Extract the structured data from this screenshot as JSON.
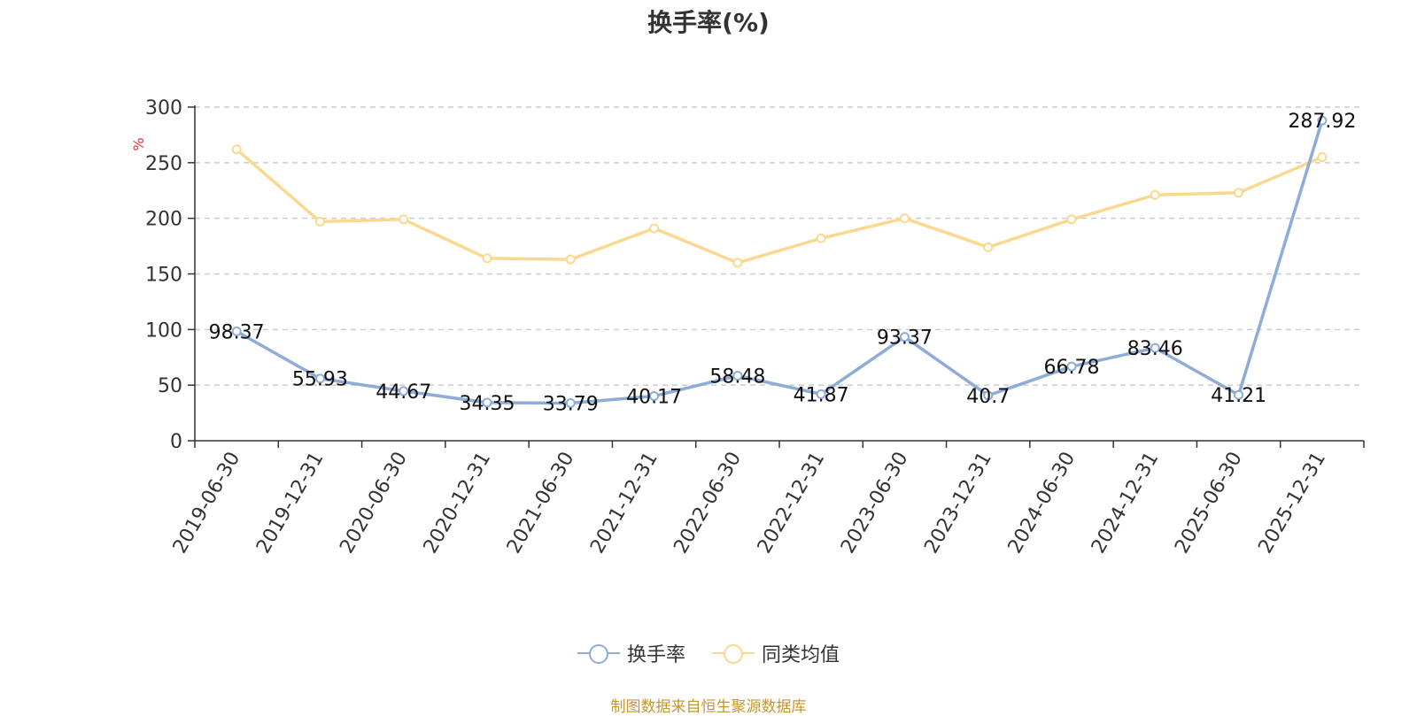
{
  "chart_data": {
    "type": "line",
    "title": "换手率(%)",
    "ylabel": "%",
    "xlabel": "",
    "ylim": [
      0,
      300
    ],
    "yticks": [
      0,
      50,
      100,
      150,
      200,
      250,
      300
    ],
    "grid": true,
    "legend_position": "bottom",
    "categories": [
      "2019-06-30",
      "2019-12-31",
      "2020-06-30",
      "2020-12-31",
      "2021-06-30",
      "2021-12-31",
      "2022-06-30",
      "2022-12-31",
      "2023-06-30",
      "2023-12-31",
      "2024-06-30",
      "2024-12-31",
      "2025-06-30",
      "2025-12-31"
    ],
    "series": [
      {
        "name": "换手率",
        "color": "#8eacd8",
        "values": [
          98.37,
          55.93,
          44.67,
          34.35,
          33.79,
          40.17,
          58.48,
          41.87,
          93.37,
          40.7,
          66.78,
          83.46,
          41.21,
          287.92
        ],
        "labels": [
          "98.37",
          "55.93",
          "44.67",
          "34.35",
          "33.79",
          "40.17",
          "58.48",
          "41.87",
          "93.37",
          "40.7",
          "66.78",
          "83.46",
          "41.21",
          "287.92"
        ],
        "show_labels": true
      },
      {
        "name": "同类均值",
        "color": "#fbd88f",
        "values": [
          262,
          197,
          199,
          164,
          163,
          191,
          160,
          182,
          200,
          174,
          199,
          221,
          223,
          255
        ],
        "show_labels": false
      }
    ]
  },
  "source_note": "制图数据来自恒生聚源数据库"
}
